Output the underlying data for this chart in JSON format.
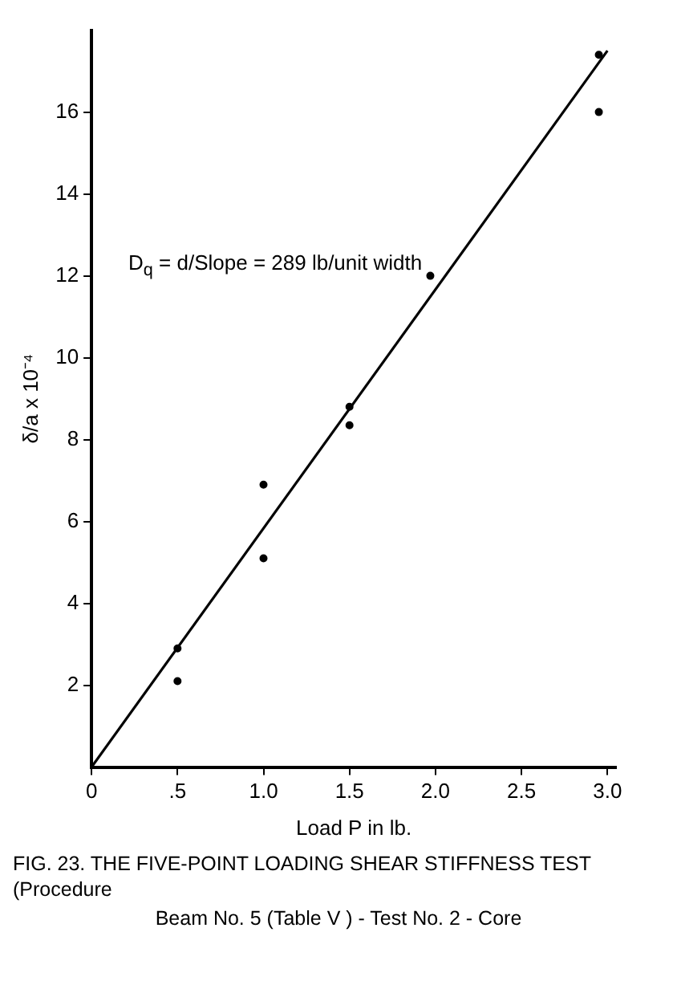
{
  "chart_data": {
    "type": "scatter",
    "title": "FIG. 23.    THE FIVE-POINT LOADING SHEAR STIFFNESS TEST (Procedure",
    "subtitle": "Beam No. 5 (Table  V  ) - Test No. 2 - Core",
    "xlabel": "Load P in lb.",
    "ylabel": "δ/a x 10⁻⁴",
    "annotations": [
      "D$_{q}$ = d/Slope = 289 lb/unit width"
    ],
    "series": [
      {
        "color": "#000000",
        "marker": "circle",
        "x": [
          0.5,
          0.5,
          1.0,
          1.0,
          1.5,
          1.5,
          1.97,
          2.95,
          2.95
        ],
        "values": [
          2.9,
          2.1,
          6.9,
          5.1,
          8.8,
          8.35,
          12.0,
          17.4,
          16.0
        ]
      },
      {
        "type": "line",
        "color": "#000000",
        "marker": "none",
        "x": [
          0,
          3.0
        ],
        "values": [
          0,
          17.5
        ]
      }
    ],
    "xlim": [
      0,
      3.05
    ],
    "xticks": [
      0,
      {
        "value": 0.5,
        "label": ".5"
      },
      {
        "value": 1,
        "label": "1.0"
      },
      {
        "value": 1.5,
        "label": "1.5"
      },
      {
        "value": 2,
        "label": "2.0"
      },
      {
        "value": 2.5,
        "label": "2.5"
      },
      {
        "value": 3,
        "label": "3.0"
      }
    ],
    "ylim": [
      0,
      18
    ],
    "yticks": [
      2,
      4,
      6,
      8,
      10,
      12,
      14,
      16
    ],
    "grid": false,
    "legend": false
  }
}
